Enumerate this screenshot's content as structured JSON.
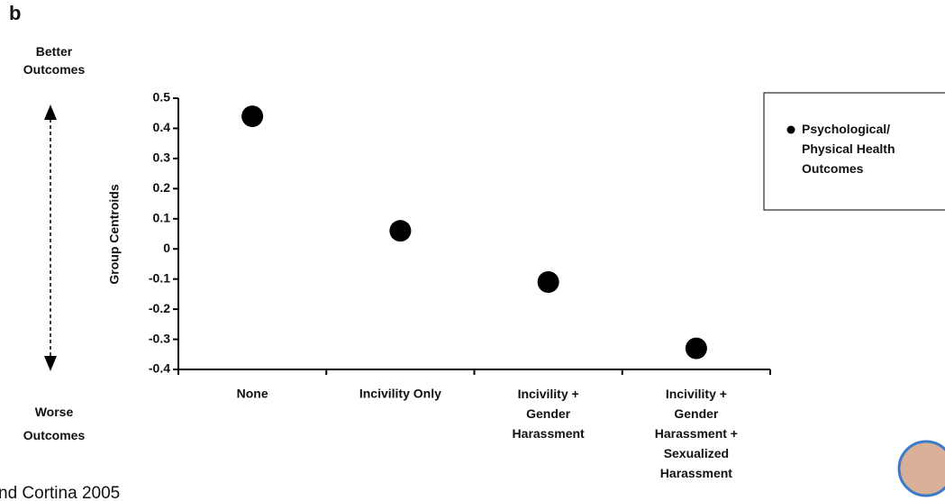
{
  "label": "b",
  "better": "Better\nOutcomes",
  "worse": "Worse\nOutcomes",
  "footer": "nd Cortina 2005",
  "chart_data": {
    "type": "dot",
    "ylabel": "Group Centroids",
    "categories": [
      "None",
      "Incivility Only",
      "Incivility +\nGender\nHarassment",
      "Incivility +\nGender\nHarassment +\nSexualized\nHarassment"
    ],
    "series": [
      {
        "name": "Psychological/\nPhysical Health\nOutcomes",
        "color": "#000000",
        "values": [
          0.44,
          0.06,
          -0.11,
          -0.33
        ]
      }
    ],
    "ylim": [
      -0.4,
      0.5
    ],
    "yticks": [
      0.5,
      0.4,
      0.3,
      0.2,
      0.1,
      0,
      -0.1,
      -0.2,
      -0.3,
      -0.4
    ]
  }
}
